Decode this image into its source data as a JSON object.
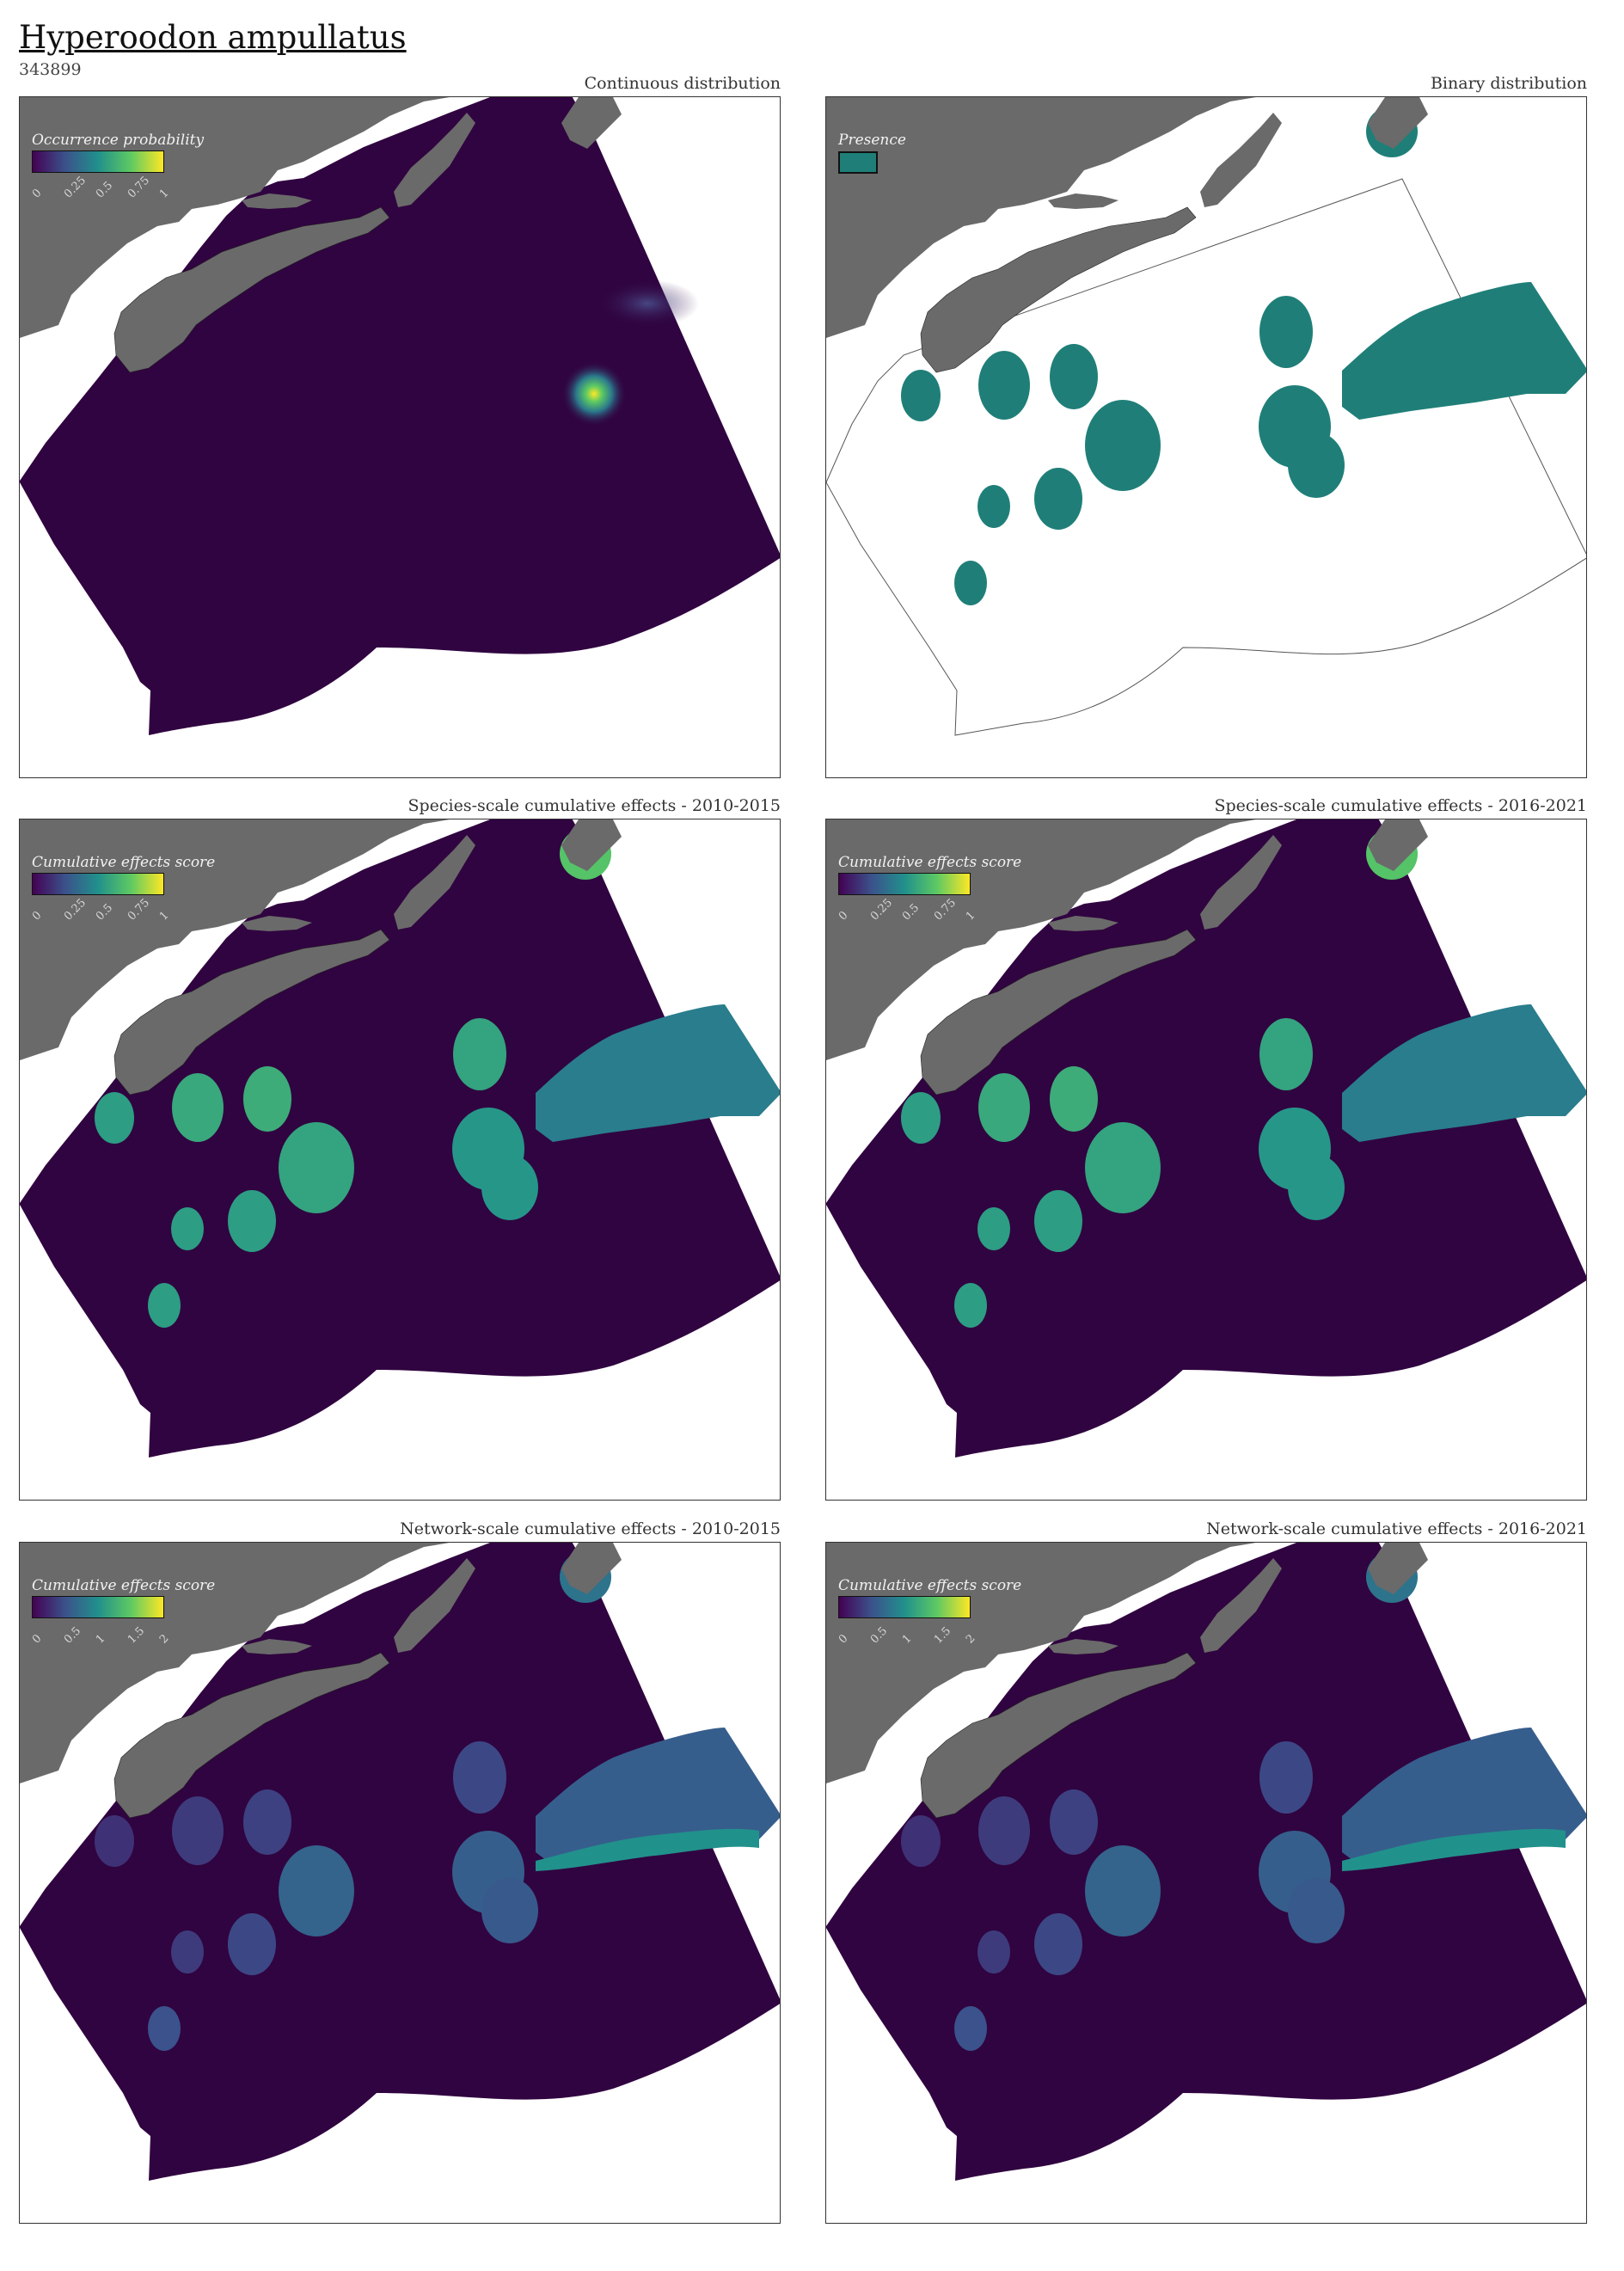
{
  "header": {
    "title": "Hyperoodon ampullatus",
    "id": "343899"
  },
  "colors": {
    "land": "#6a6a6a",
    "ocean_low": "#300440",
    "presence": "#1f7f78",
    "viridis": [
      "#440154",
      "#3b528b",
      "#21908c",
      "#5dc963",
      "#fde725"
    ]
  },
  "panels": [
    {
      "title": "Continuous distribution",
      "legend_title": "Occurrence probability",
      "ticks": [
        "0",
        "0.25",
        "0.5",
        "0.75",
        "1"
      ]
    },
    {
      "title": "Binary distribution",
      "legend_title": "Presence",
      "ticks": []
    },
    {
      "title": "Species-scale cumulative effects - 2010-2015",
      "legend_title": "Cumulative effects score",
      "ticks": [
        "0",
        "0.25",
        "0.5",
        "0.75",
        "1"
      ]
    },
    {
      "title": "Species-scale cumulative effects - 2016-2021",
      "legend_title": "Cumulative effects score",
      "ticks": [
        "0",
        "0.25",
        "0.5",
        "0.75",
        "1"
      ]
    },
    {
      "title": "Network-scale cumulative effects - 2010-2015",
      "legend_title": "Cumulative effects score",
      "ticks": [
        "0",
        "0.5",
        "1",
        "1.5",
        "2"
      ]
    },
    {
      "title": "Network-scale cumulative effects - 2016-2021",
      "legend_title": "Cumulative effects score",
      "ticks": [
        "0",
        "0.5",
        "1",
        "1.5",
        "2"
      ]
    }
  ]
}
